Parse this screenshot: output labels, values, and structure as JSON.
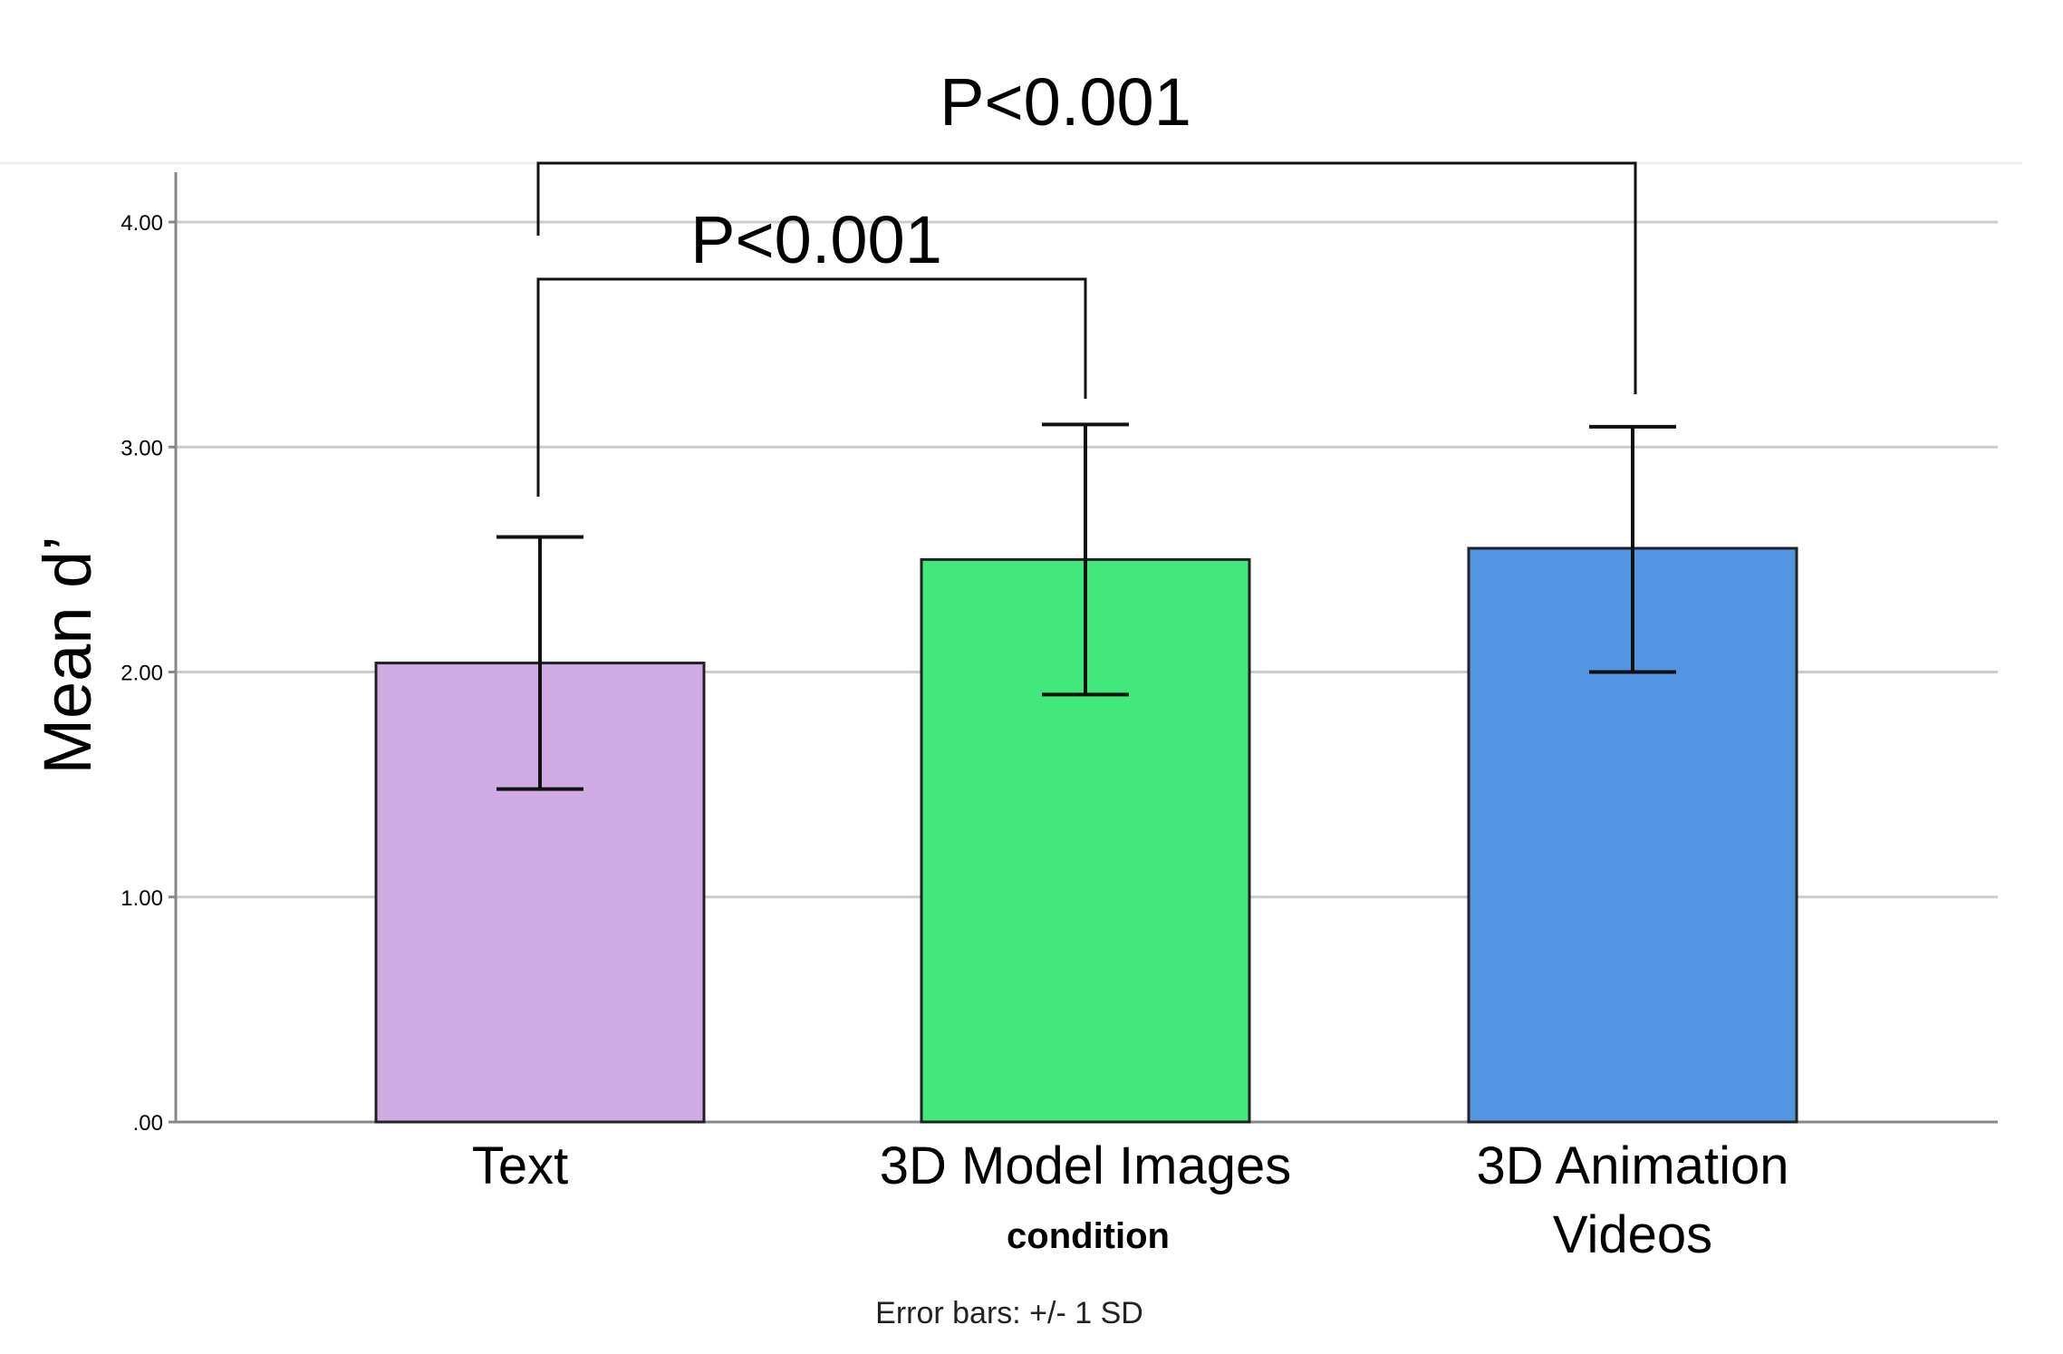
{
  "chart_data": {
    "type": "bar",
    "categories": [
      "Text",
      "3D Model Images",
      "3D Animation Videos"
    ],
    "category_lines": [
      [
        "Text"
      ],
      [
        "3D Model Images"
      ],
      [
        "3D Animation",
        "Videos"
      ]
    ],
    "values": [
      2.04,
      2.5,
      2.55
    ],
    "error_bars": {
      "lower": [
        1.48,
        1.9,
        2.0
      ],
      "upper": [
        2.6,
        3.1,
        3.09
      ]
    },
    "bar_colors": [
      "#d0aae3",
      "#42e87c",
      "#5395e3"
    ],
    "ylim": [
      0,
      4.0
    ],
    "yticks": [
      0,
      1,
      2,
      3,
      4
    ],
    "ytick_labels": [
      ".00",
      "1.00",
      "2.00",
      "3.00",
      "4.00"
    ],
    "ylabel": "Mean d’",
    "xlabel": "condition",
    "footnote": "Error bars: +/- 1 SD",
    "grid": true,
    "significance": [
      {
        "from": 0,
        "to": 1,
        "label": "P<0.001"
      },
      {
        "from": 0,
        "to": 2,
        "label": "P<0.001"
      }
    ]
  }
}
